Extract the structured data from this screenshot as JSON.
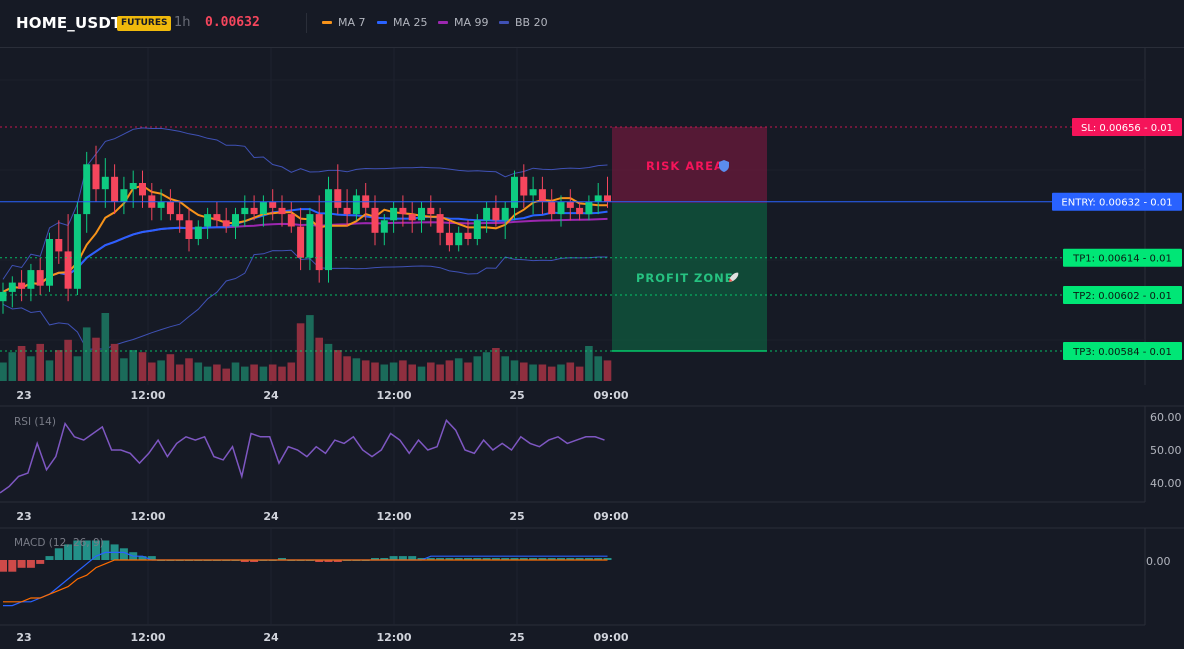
{
  "header": {
    "symbol": "HOME_USDT",
    "badge": "FUTURES",
    "timeframe": "1h",
    "price": "0.00632",
    "indicators": [
      {
        "label": "MA 7",
        "color": "#f7931a"
      },
      {
        "label": "MA 25",
        "color": "#2962ff"
      },
      {
        "label": "MA 99",
        "color": "#9c27b0"
      },
      {
        "label": "BB 20",
        "color": "#3f51b5"
      }
    ]
  },
  "trade": {
    "risk_label": "RISK AREA",
    "profit_label": "PROFIT ZONE",
    "levels": [
      {
        "label": "SL: 0.00656 - 0.01",
        "price": 0.00656,
        "color": "#f5145a",
        "kind": "sl"
      },
      {
        "label": "ENTRY: 0.00632 - 0.01",
        "price": 0.00632,
        "color": "#2962ff",
        "kind": "entry"
      },
      {
        "label": "TP1: 0.00614 - 0.01",
        "price": 0.00614,
        "color": "#00e676",
        "kind": "tp"
      },
      {
        "label": "TP2: 0.00602 - 0.01",
        "price": 0.00602,
        "color": "#00e676",
        "kind": "tp"
      },
      {
        "label": "TP3: 0.00584 - 0.01",
        "price": 0.00584,
        "color": "#00e676",
        "kind": "tp"
      }
    ]
  },
  "time_axis": [
    "23",
    "12:00",
    "24",
    "12:00",
    "25",
    "09:00"
  ],
  "rsi": {
    "title": "RSI (14)",
    "ticks": [
      "60.00",
      "50.00",
      "40.00"
    ],
    "color": "#7e57c2"
  },
  "macd": {
    "title": "MACD (12, 26, 9)",
    "ticks": [
      "0.00"
    ],
    "macd_color": "#2962ff",
    "signal_color": "#ff6d00"
  },
  "chart_data": {
    "type": "candlestick",
    "price_range": [
      0.0057,
      0.0068
    ],
    "candles": [
      [
        0.006,
        0.00606,
        0.00596,
        0.00603
      ],
      [
        0.00603,
        0.00608,
        0.00598,
        0.00606
      ],
      [
        0.00606,
        0.0061,
        0.006,
        0.00604
      ],
      [
        0.00604,
        0.00612,
        0.006,
        0.0061
      ],
      [
        0.0061,
        0.00614,
        0.00602,
        0.00605
      ],
      [
        0.00605,
        0.00622,
        0.00603,
        0.0062
      ],
      [
        0.0062,
        0.00626,
        0.00612,
        0.00616
      ],
      [
        0.00616,
        0.00628,
        0.006,
        0.00604
      ],
      [
        0.00604,
        0.00632,
        0.00602,
        0.00628
      ],
      [
        0.00628,
        0.00648,
        0.00622,
        0.00644
      ],
      [
        0.00644,
        0.0065,
        0.00632,
        0.00636
      ],
      [
        0.00636,
        0.00646,
        0.0063,
        0.0064
      ],
      [
        0.0064,
        0.00644,
        0.00628,
        0.00632
      ],
      [
        0.00632,
        0.0064,
        0.00628,
        0.00636
      ],
      [
        0.00636,
        0.00642,
        0.0063,
        0.00638
      ],
      [
        0.00638,
        0.00642,
        0.0063,
        0.00634
      ],
      [
        0.00634,
        0.00638,
        0.00626,
        0.0063
      ],
      [
        0.0063,
        0.00636,
        0.00626,
        0.00632
      ],
      [
        0.00632,
        0.00636,
        0.00626,
        0.00628
      ],
      [
        0.00628,
        0.00632,
        0.00622,
        0.00626
      ],
      [
        0.00626,
        0.0063,
        0.00616,
        0.0062
      ],
      [
        0.0062,
        0.00626,
        0.00618,
        0.00624
      ],
      [
        0.00624,
        0.0063,
        0.0062,
        0.00628
      ],
      [
        0.00628,
        0.00632,
        0.00624,
        0.00626
      ],
      [
        0.00626,
        0.0063,
        0.00622,
        0.00624
      ],
      [
        0.00624,
        0.0063,
        0.0062,
        0.00628
      ],
      [
        0.00628,
        0.00634,
        0.00624,
        0.0063
      ],
      [
        0.0063,
        0.00634,
        0.00626,
        0.00628
      ],
      [
        0.00628,
        0.00634,
        0.00624,
        0.00632
      ],
      [
        0.00632,
        0.00636,
        0.00626,
        0.0063
      ],
      [
        0.0063,
        0.00634,
        0.00624,
        0.00628
      ],
      [
        0.00628,
        0.00632,
        0.00622,
        0.00624
      ],
      [
        0.00624,
        0.0063,
        0.0061,
        0.00614
      ],
      [
        0.00614,
        0.0063,
        0.0061,
        0.00628
      ],
      [
        0.00628,
        0.00634,
        0.00606,
        0.0061
      ],
      [
        0.0061,
        0.0064,
        0.00606,
        0.00636
      ],
      [
        0.00636,
        0.00644,
        0.00628,
        0.0063
      ],
      [
        0.0063,
        0.00636,
        0.00624,
        0.00628
      ],
      [
        0.00628,
        0.00636,
        0.00626,
        0.00634
      ],
      [
        0.00634,
        0.00638,
        0.00626,
        0.0063
      ],
      [
        0.0063,
        0.00634,
        0.00618,
        0.00622
      ],
      [
        0.00622,
        0.00628,
        0.00618,
        0.00626
      ],
      [
        0.00626,
        0.00632,
        0.00622,
        0.0063
      ],
      [
        0.0063,
        0.00634,
        0.00624,
        0.00628
      ],
      [
        0.00628,
        0.00632,
        0.00622,
        0.00626
      ],
      [
        0.00626,
        0.00632,
        0.00622,
        0.0063
      ],
      [
        0.0063,
        0.00634,
        0.00624,
        0.00628
      ],
      [
        0.00628,
        0.0063,
        0.00618,
        0.00622
      ],
      [
        0.00622,
        0.00626,
        0.00616,
        0.00618
      ],
      [
        0.00618,
        0.00624,
        0.00616,
        0.00622
      ],
      [
        0.00622,
        0.00626,
        0.00618,
        0.0062
      ],
      [
        0.0062,
        0.00628,
        0.00618,
        0.00626
      ],
      [
        0.00626,
        0.00632,
        0.00622,
        0.0063
      ],
      [
        0.0063,
        0.00634,
        0.00624,
        0.00626
      ],
      [
        0.00626,
        0.00632,
        0.0062,
        0.0063
      ],
      [
        0.0063,
        0.00642,
        0.00626,
        0.0064
      ],
      [
        0.0064,
        0.00644,
        0.0063,
        0.00634
      ],
      [
        0.00634,
        0.0064,
        0.00628,
        0.00636
      ],
      [
        0.00636,
        0.0064,
        0.00628,
        0.00632
      ],
      [
        0.00632,
        0.00636,
        0.00626,
        0.00628
      ],
      [
        0.00628,
        0.00634,
        0.00624,
        0.00632
      ],
      [
        0.00632,
        0.00636,
        0.00626,
        0.0063
      ],
      [
        0.0063,
        0.00632,
        0.00626,
        0.00628
      ],
      [
        0.00628,
        0.00634,
        0.00626,
        0.00632
      ],
      [
        0.00632,
        0.00638,
        0.00628,
        0.00634
      ],
      [
        0.00634,
        0.0064,
        0.0063,
        0.00632
      ]
    ],
    "volume": [
      9,
      14,
      17,
      12,
      18,
      10,
      15,
      20,
      12,
      26,
      21,
      33,
      18,
      11,
      15,
      14,
      9,
      10,
      13,
      8,
      11,
      9,
      7,
      8,
      6,
      9,
      7,
      8,
      7,
      8,
      7,
      9,
      28,
      32,
      21,
      18,
      15,
      12,
      11,
      10,
      9,
      8,
      9,
      10,
      8,
      7,
      9,
      8,
      10,
      11,
      9,
      12,
      14,
      16,
      12,
      10,
      9,
      8,
      8,
      7,
      8,
      9,
      7,
      17,
      12,
      10
    ],
    "rsi": [
      37,
      39,
      42,
      43,
      52,
      44,
      48,
      58,
      54,
      53,
      55,
      57,
      50,
      50,
      49,
      46,
      49,
      53,
      48,
      52,
      54,
      53,
      54,
      48,
      47,
      51,
      42,
      55,
      54,
      54,
      46,
      51,
      50,
      48,
      51,
      49,
      53,
      52,
      54,
      50,
      48,
      50,
      55,
      53,
      49,
      53,
      50,
      51,
      59,
      56,
      50,
      49,
      53,
      50,
      52,
      50,
      54,
      52,
      51,
      53,
      54,
      52,
      53,
      54,
      54,
      53
    ],
    "macd_hist": [
      -3,
      -3,
      -2,
      -2,
      -1,
      1,
      3,
      4,
      5,
      5,
      5,
      5,
      4,
      3,
      2,
      1,
      1,
      0,
      0,
      0,
      0,
      0,
      0,
      0,
      0,
      0,
      -0.5,
      -0.5,
      0,
      0,
      0.5,
      0,
      0,
      0,
      -0.5,
      -0.5,
      -0.5,
      0,
      0,
      0,
      0.5,
      0.5,
      1,
      1,
      1,
      0.5,
      0.5,
      0.5,
      0.5,
      0.5,
      0.5,
      0.5,
      0.5,
      0.5,
      0.5,
      0.5,
      0.5,
      0.5,
      0.5,
      0.5,
      0.5,
      0.5,
      0.5,
      0.5,
      0.5,
      0.5
    ],
    "macd_line": [
      -12,
      -12,
      -11,
      -11,
      -10,
      -9,
      -7,
      -5,
      -3,
      -1,
      1,
      2,
      2,
      2,
      1,
      1,
      0,
      0,
      0,
      0,
      0,
      0,
      0,
      0,
      0,
      0,
      0,
      0,
      0,
      0,
      0,
      0,
      0,
      0,
      0,
      0,
      0,
      0,
      0,
      0,
      0,
      0,
      0,
      0,
      0,
      0,
      1,
      1,
      1,
      1,
      1,
      1,
      1,
      1,
      1,
      1,
      1,
      1,
      1,
      1,
      1,
      1,
      1,
      1,
      1,
      1
    ],
    "macd_signal": [
      -11,
      -11,
      -11,
      -10,
      -10,
      -9,
      -8,
      -7,
      -5,
      -4,
      -2,
      -1,
      0,
      0,
      0,
      0,
      0,
      0,
      0,
      0,
      0,
      0,
      0,
      0,
      0,
      0,
      0,
      0,
      0,
      0,
      0,
      0,
      0,
      0,
      0,
      0,
      0,
      0,
      0,
      0,
      0,
      0,
      0,
      0,
      0,
      0,
      0,
      0,
      0,
      0,
      0,
      0,
      0,
      0,
      0,
      0,
      0,
      0,
      0,
      0,
      0,
      0,
      0,
      0,
      0,
      0
    ]
  }
}
